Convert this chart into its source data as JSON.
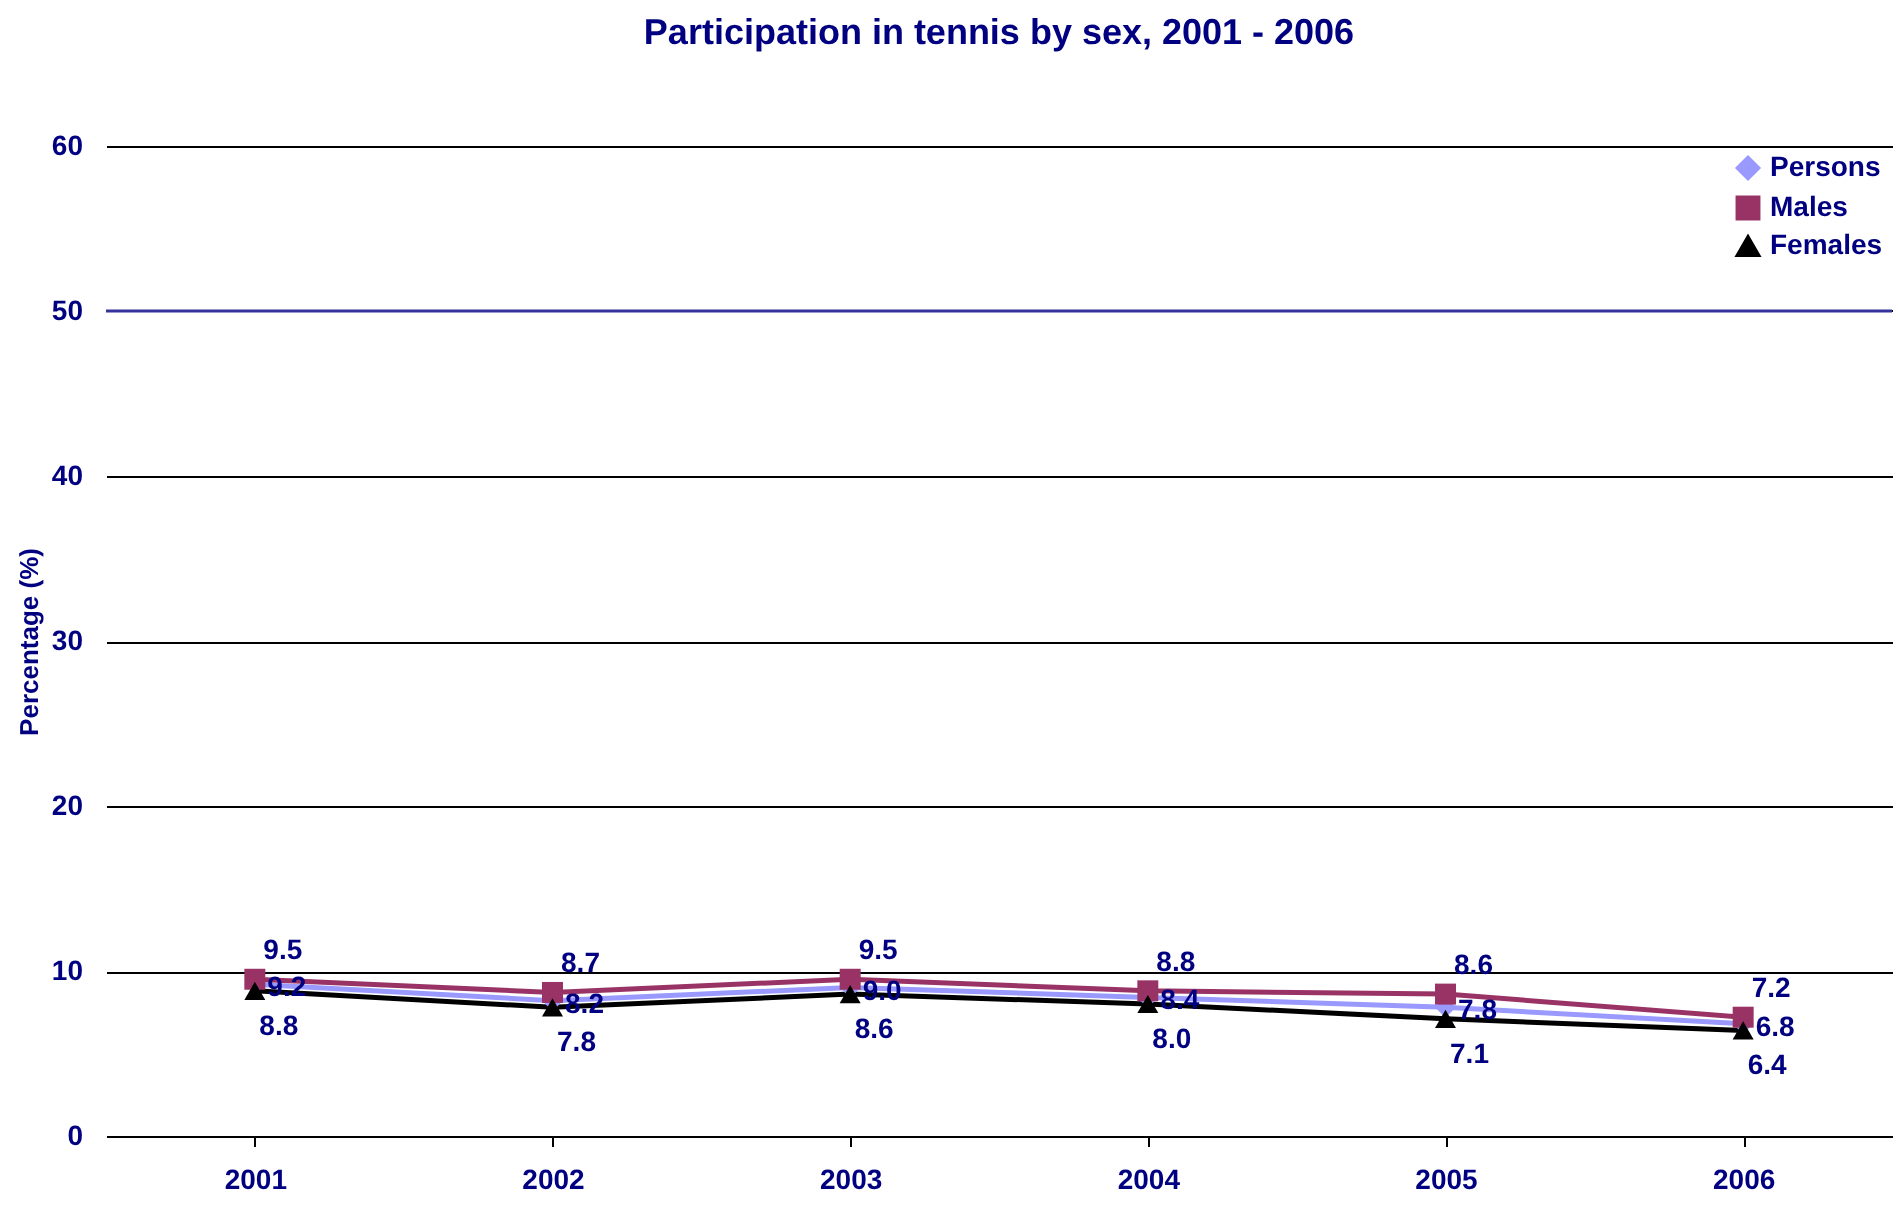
{
  "chart_data": {
    "type": "line",
    "title": "Participation in tennis by sex, 2001 - 2006",
    "ylabel": "Percentage (%)",
    "categories": [
      "2001",
      "2002",
      "2003",
      "2004",
      "2005",
      "2006"
    ],
    "series": [
      {
        "name": "Persons",
        "color": "#9999ff",
        "marker": "diamond",
        "values": [
          9.2,
          8.2,
          9.0,
          8.4,
          7.8,
          6.8
        ],
        "value_labels": [
          "9.2",
          "8.2",
          "9.0",
          "8.4",
          "7.8",
          "6.8"
        ]
      },
      {
        "name": "Males",
        "color": "#993366",
        "marker": "square",
        "values": [
          9.5,
          8.7,
          9.5,
          8.8,
          8.6,
          7.2
        ],
        "value_labels": [
          "9.5",
          "8.7",
          "9.5",
          "8.8",
          "8.6",
          "7.2"
        ]
      },
      {
        "name": "Females",
        "color": "#000000",
        "marker": "triangle",
        "values": [
          8.8,
          7.8,
          8.6,
          8.0,
          7.1,
          6.4
        ],
        "value_labels": [
          "8.8",
          "7.8",
          "8.6",
          "8.0",
          "7.1",
          "6.4"
        ]
      }
    ],
    "ylim": [
      0,
      60
    ],
    "yticks": [
      0,
      10,
      20,
      30,
      40,
      50,
      60
    ],
    "grid": "y",
    "legend": "top right",
    "line_style": "solid",
    "ref_lines": [
      {
        "axis": "y",
        "value": 50,
        "color": "#333399"
      }
    ]
  }
}
